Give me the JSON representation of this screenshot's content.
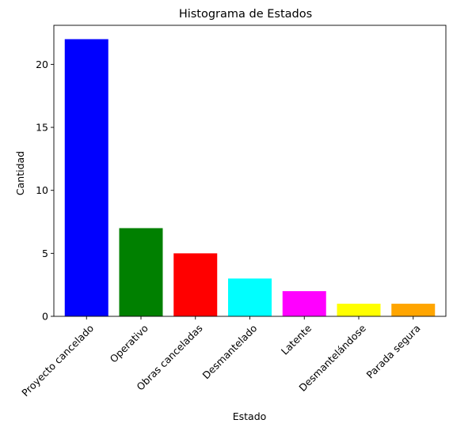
{
  "chart_data": {
    "type": "bar",
    "title": "Histograma de Estados",
    "xlabel": "Estado",
    "ylabel": "Cantidad",
    "categories": [
      "Proyecto cancelado",
      "Operativo",
      "Obras canceladas",
      "Desmantelado",
      "Latente",
      "Desmantelándose",
      "Parada segura"
    ],
    "values": [
      22,
      7,
      5,
      3,
      2,
      1,
      1
    ],
    "colors": [
      "#0000ff",
      "#008000",
      "#ff0000",
      "#00ffff",
      "#ff00ff",
      "#ffff00",
      "#ffa500"
    ],
    "ylim": [
      0,
      23.1
    ],
    "yticks": [
      0,
      5,
      10,
      15,
      20
    ],
    "grid": false,
    "legend": "none"
  }
}
